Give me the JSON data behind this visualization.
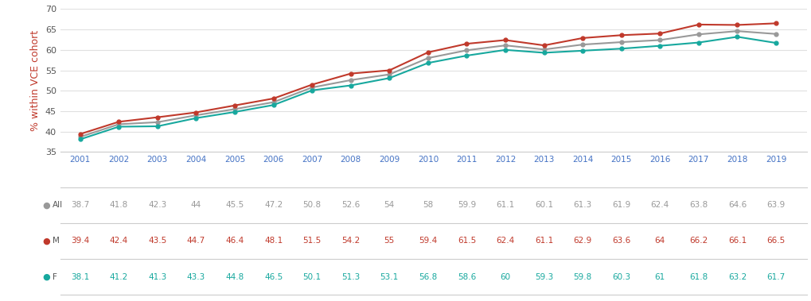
{
  "years": [
    2001,
    2002,
    2003,
    2004,
    2005,
    2006,
    2007,
    2008,
    2009,
    2010,
    2011,
    2012,
    2013,
    2014,
    2015,
    2016,
    2017,
    2018,
    2019
  ],
  "all": [
    38.7,
    41.8,
    42.3,
    44,
    45.5,
    47.2,
    50.8,
    52.6,
    54,
    58,
    59.9,
    61.1,
    60.1,
    61.3,
    61.9,
    62.4,
    63.8,
    64.6,
    63.9
  ],
  "male": [
    39.4,
    42.4,
    43.5,
    44.7,
    46.4,
    48.1,
    51.5,
    54.2,
    55,
    59.4,
    61.5,
    62.4,
    61.1,
    62.9,
    63.6,
    64,
    66.2,
    66.1,
    66.5
  ],
  "female": [
    38.1,
    41.2,
    41.3,
    43.3,
    44.8,
    46.5,
    50.1,
    51.3,
    53.1,
    56.8,
    58.6,
    60,
    59.3,
    59.8,
    60.3,
    61,
    61.8,
    63.2,
    61.7
  ],
  "color_all": "#999999",
  "color_male": "#c0392b",
  "color_female": "#17a89e",
  "ylabel": "% within VCE cohort",
  "ylim_min": 35,
  "ylim_max": 70,
  "yticks": [
    35,
    40,
    45,
    50,
    55,
    60,
    65,
    70
  ],
  "year_label_color": "#4472c4",
  "background_color": "#ffffff",
  "grid_color": "#e0e0e0",
  "xlim_min": 2000.5,
  "xlim_max": 2019.8
}
